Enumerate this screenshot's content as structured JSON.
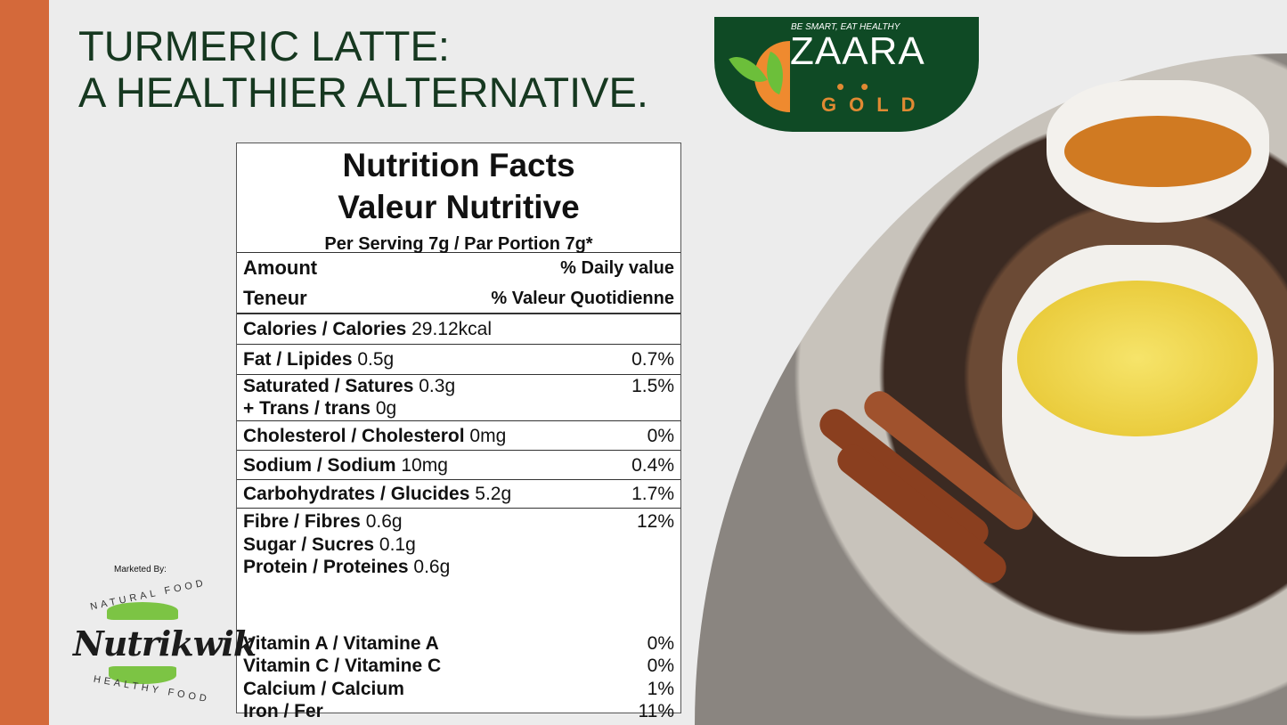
{
  "title": {
    "line1": "TURMERIC LATTE:",
    "line2": "A HEALTHIER ALTERNATIVE."
  },
  "brand": {
    "tagline": "BE SMART, EAT HEALTHY",
    "name": "ZAARA",
    "dots": "••",
    "sub": "GOLD",
    "colors": {
      "green": "#0f4a25",
      "orange": "#e08a33"
    }
  },
  "accent_color": "#d4693a",
  "marketer": {
    "label": "Marketed By:",
    "name": "Nutrikwik",
    "top_text": "NATURAL FOOD",
    "bottom_text": "HEALTHY FOOD"
  },
  "nutrition": {
    "title_en": "Nutrition Facts",
    "title_fr": "Valeur Nutritive",
    "serving": "Per Serving 7g / Par Portion 7g*",
    "amount": "Amount",
    "daily": "% Daily value",
    "teneur": "Teneur",
    "valeur": "% Valeur Quotidienne",
    "rows": [
      {
        "label": "Calories / Calories",
        "value": "29.12kcal",
        "dv": ""
      },
      {
        "label": "Fat / Lipides",
        "value": "0.5g",
        "dv": "0.7%"
      },
      {
        "label": "Saturated / Satures",
        "value": "0.3g",
        "dv": "1.5%",
        "label2": "+ Trans / trans",
        "value2": "0g"
      },
      {
        "label": "Cholesterol / Cholesterol",
        "value": "0mg",
        "dv": "0%"
      },
      {
        "label": "Sodium / Sodium",
        "value": "10mg",
        "dv": "0.4%"
      },
      {
        "label": "Carbohydrates / Glucides",
        "value": "5.2g",
        "dv": "1.7%"
      }
    ],
    "sub": [
      {
        "label": "Fibre / Fibres",
        "value": "0.6g",
        "dv": "12%"
      },
      {
        "label": "Sugar / Sucres",
        "value": "0.1g",
        "dv": ""
      },
      {
        "label": "Protein / Proteines",
        "value": "0.6g",
        "dv": ""
      }
    ],
    "vitamins": [
      {
        "label": "Vitamin A / Vitamine A",
        "dv": "0%"
      },
      {
        "label": "Vitamin C / Vitamine C",
        "dv": "0%"
      },
      {
        "label": "Calcium / Calcium",
        "dv": "1%"
      },
      {
        "label": "Iron / Fer",
        "dv": "11%"
      }
    ]
  }
}
